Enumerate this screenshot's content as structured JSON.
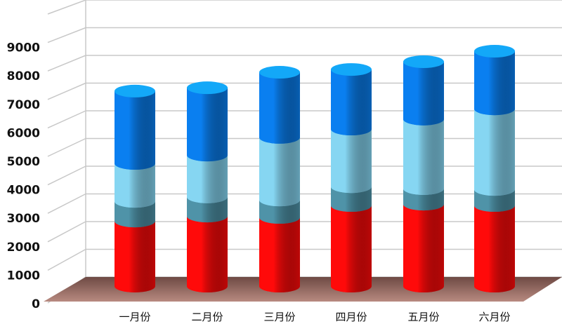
{
  "chart_data": {
    "type": "bar",
    "subtype": "stacked-3d-cylinder",
    "title": "",
    "xlabel": "",
    "ylabel": "",
    "ylim": [
      0,
      10000
    ],
    "yticks": [
      "0",
      "1000",
      "2000",
      "3000",
      "4000",
      "5000",
      "6000",
      "7000",
      "8000",
      "9000"
    ],
    "grid": true,
    "categories": [
      "一月份",
      "二月份",
      "三月份",
      "四月份",
      "五月份",
      "六月份"
    ],
    "series": [
      {
        "values": [
          2350,
          2530,
          2480,
          2910,
          2960,
          2910
        ],
        "color": "#ff0a0a"
      },
      {
        "values": [
          710,
          690,
          630,
          680,
          560,
          580
        ],
        "color": "#4f93a8"
      },
      {
        "values": [
          1370,
          1510,
          2260,
          2080,
          2510,
          2910
        ],
        "color": "#86d6f2"
      },
      {
        "values": [
          2610,
          2430,
          2350,
          2150,
          2070,
          2080
        ],
        "color": "#0a7ff0"
      }
    ],
    "floor_color": "#b88a80"
  }
}
